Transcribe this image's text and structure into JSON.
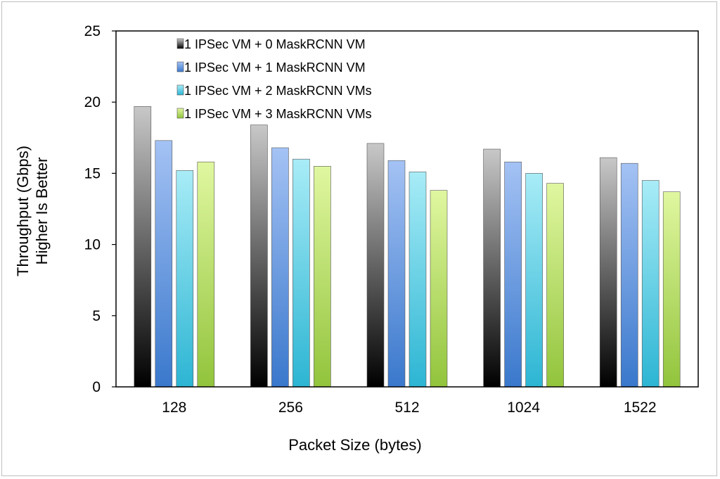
{
  "chart_data": {
    "type": "bar",
    "categories": [
      "128",
      "256",
      "512",
      "1024",
      "1522"
    ],
    "series": [
      {
        "name": "1 IPSec VM + 0 MaskRCNN VM",
        "values": [
          19.7,
          18.4,
          17.1,
          16.7,
          16.1
        ],
        "colors": [
          "#c8c8c8",
          "#000000"
        ]
      },
      {
        "name": "1 IPSec VM + 1 MaskRCNN VM",
        "values": [
          17.3,
          16.8,
          15.9,
          15.8,
          15.7
        ],
        "colors": [
          "#a4c2f4",
          "#3a78cc"
        ]
      },
      {
        "name": "1 IPSec VM + 2 MaskRCNN VMs",
        "values": [
          15.2,
          16.0,
          15.1,
          15.0,
          14.5
        ],
        "colors": [
          "#a8ecf7",
          "#2cb5d3"
        ]
      },
      {
        "name": "1 IPSec VM + 3 MaskRCNN VMs",
        "values": [
          15.8,
          15.5,
          13.8,
          14.3,
          13.7
        ],
        "colors": [
          "#e0f7a0",
          "#92c43c"
        ]
      }
    ],
    "xlabel": "Packet Size (bytes)",
    "ylabel": [
      "Throughput (Gbps)",
      "Higher Is Better"
    ],
    "ylim": [
      0,
      25
    ],
    "yticks": [
      "0",
      "5",
      "10",
      "15",
      "20",
      "25"
    ],
    "grid": false,
    "legend_position": "top-left"
  }
}
